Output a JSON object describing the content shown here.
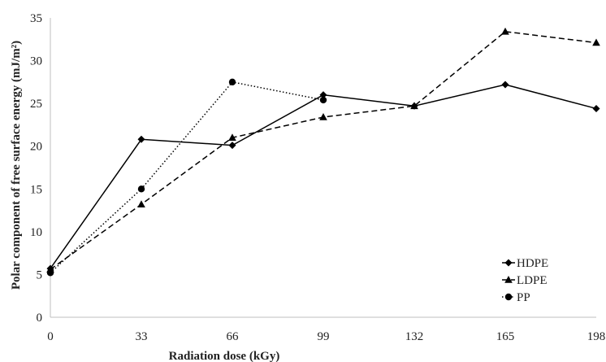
{
  "chart_data": {
    "type": "line",
    "title": "",
    "xlabel": "Radiation dose (kGy)",
    "ylabel": "Polar component of free surface energy (mJ/m²)",
    "x": [
      0,
      33,
      66,
      99,
      132,
      165,
      198
    ],
    "xticks": [
      "0",
      "33",
      "66",
      "99",
      "132",
      "165",
      "198"
    ],
    "xlim": [
      0,
      198
    ],
    "yticks": [
      "0",
      "5",
      "10",
      "15",
      "20",
      "25",
      "30",
      "35"
    ],
    "ylim": [
      0,
      35
    ],
    "grid": false,
    "legend_position": "bottom-right",
    "series": [
      {
        "name": "HDPE",
        "marker": "diamond",
        "line_style": "solid",
        "color": "#000000",
        "x": [
          0,
          33,
          66,
          99,
          132,
          165,
          198
        ],
        "values": [
          5.7,
          20.8,
          20.1,
          26.0,
          24.7,
          27.2,
          24.4
        ]
      },
      {
        "name": "LDPE",
        "marker": "triangle",
        "line_style": "dashed",
        "color": "#000000",
        "x": [
          0,
          33,
          66,
          99,
          132,
          165,
          198
        ],
        "values": [
          5.6,
          13.2,
          21.0,
          23.4,
          24.7,
          33.4,
          32.1
        ]
      },
      {
        "name": "PP",
        "marker": "circle",
        "line_style": "dotted",
        "color": "#000000",
        "x": [
          0,
          33,
          66,
          99
        ],
        "values": [
          5.2,
          15.0,
          27.5,
          25.4
        ]
      }
    ]
  }
}
